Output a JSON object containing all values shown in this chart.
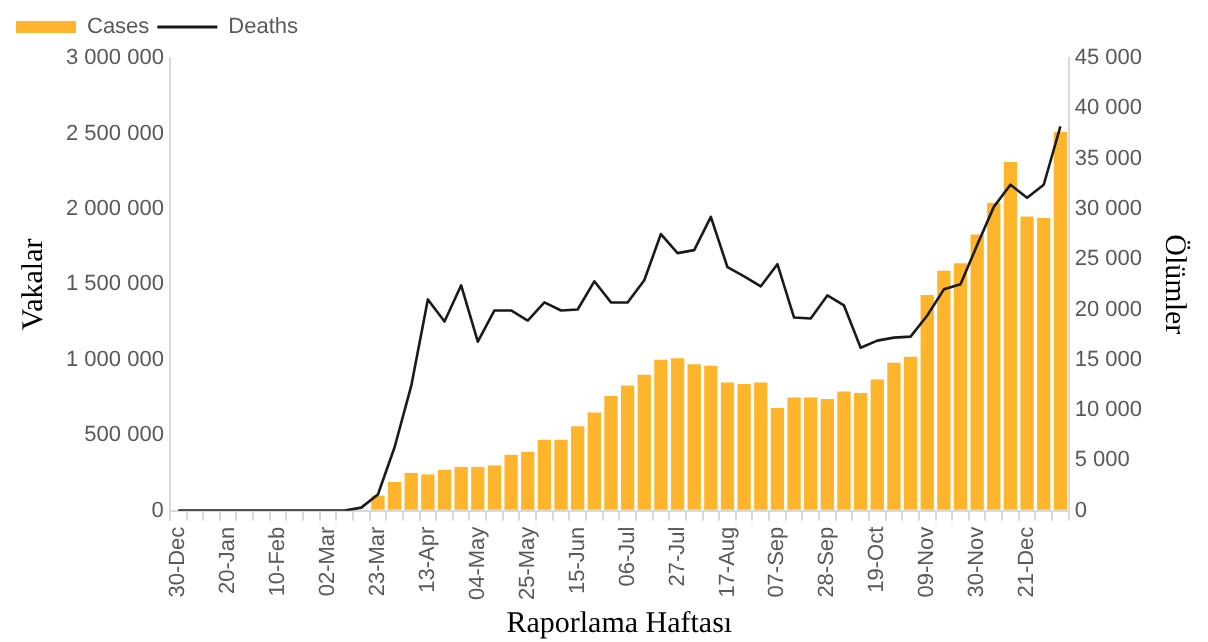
{
  "chart_data": {
    "type": "bar",
    "categories": [
      "30-Dec",
      null,
      null,
      "20-Jan",
      null,
      null,
      "10-Feb",
      null,
      null,
      "02-Mar",
      null,
      null,
      "23-Mar",
      null,
      null,
      "13-Apr",
      null,
      null,
      "04-May",
      null,
      null,
      "25-May",
      null,
      null,
      "15-Jun",
      null,
      null,
      "06-Jul",
      null,
      null,
      "27-Jul",
      null,
      null,
      "17-Aug",
      null,
      null,
      "07-Sep",
      null,
      null,
      "28-Sep",
      null,
      null,
      "19-Oct",
      null,
      null,
      "09-Nov",
      null,
      null,
      "30-Nov",
      null,
      null,
      "21-Dec",
      null,
      null
    ],
    "xlabel": "Raporlama Haftası",
    "ylabel": "Vakalar",
    "y2label": "Ölümler",
    "series": [
      {
        "name": "Cases",
        "color": "#ffb52b",
        "values": [
          0,
          0,
          0,
          0,
          0,
          0,
          0,
          0,
          0,
          0,
          0,
          0,
          100000,
          190000,
          250000,
          240000,
          270000,
          290000,
          290000,
          300000,
          370000,
          390000,
          470000,
          470000,
          560000,
          650000,
          760000,
          830000,
          900000,
          1000000,
          1010000,
          970000,
          960000,
          850000,
          840000,
          850000,
          680000,
          750000,
          750000,
          740000,
          790000,
          780000,
          870000,
          980000,
          1020000,
          1430000,
          1590000,
          1640000,
          1830000,
          2040000,
          2310000,
          1950000,
          1940000,
          2510000
        ]
      },
      {
        "name": "Deaths",
        "type": "line",
        "axis": "y2",
        "color": "#1a1a1a",
        "values": [
          0,
          0,
          0,
          0,
          0,
          0,
          0,
          0,
          0,
          0,
          0,
          300,
          1600,
          6300,
          12400,
          21000,
          18800,
          22400,
          16800,
          19900,
          19900,
          18900,
          20700,
          19900,
          20000,
          22800,
          20700,
          20700,
          22900,
          27500,
          25600,
          25900,
          29200,
          24200,
          23300,
          22300,
          24500,
          19200,
          19100,
          21400,
          20400,
          16200,
          16900,
          17200,
          17300,
          19400,
          22000,
          22500,
          26400,
          30200,
          32400,
          31100,
          32400,
          38200
        ]
      }
    ],
    "ylim": [
      0,
      3000000
    ],
    "yticks": [
      0,
      {
        "value": 500000,
        "label": "500 000"
      },
      {
        "value": 1000000,
        "label": "1 000 000"
      },
      {
        "value": 1500000,
        "label": "1 500 000"
      },
      {
        "value": 2000000,
        "label": "2 000 000"
      },
      {
        "value": 2500000,
        "label": "2 500 000"
      },
      {
        "value": 3000000,
        "label": "3 000 000"
      }
    ],
    "y2lim": [
      0,
      45000
    ],
    "y2ticks": [
      0,
      {
        "value": 5000,
        "label": "5 000"
      },
      {
        "value": 10000,
        "label": "10 000"
      },
      {
        "value": 15000,
        "label": "15 000"
      },
      {
        "value": 20000,
        "label": "20 000"
      },
      {
        "value": 25000,
        "label": "25 000"
      },
      {
        "value": 30000,
        "label": "30 000"
      },
      {
        "value": 35000,
        "label": "35 000"
      },
      {
        "value": 40000,
        "label": "40 000"
      },
      {
        "value": 45000,
        "label": "45 000"
      }
    ],
    "legend": "top left",
    "grid": false,
    "marker": "none",
    "line_style": "solid"
  }
}
